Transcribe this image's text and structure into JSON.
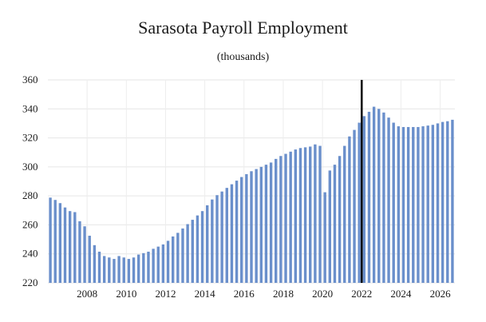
{
  "chart_data": {
    "type": "bar",
    "title": "Sarasota Payroll Employment",
    "subtitle": "(thousands)",
    "xlabel": "",
    "ylabel": "",
    "ylim": [
      220,
      360
    ],
    "yticks": [
      220,
      240,
      260,
      280,
      300,
      320,
      340,
      360
    ],
    "xtick_labels": [
      "2008",
      "2010",
      "2012",
      "2014",
      "2016",
      "2018",
      "2020",
      "2022",
      "2024",
      "2026"
    ],
    "x_start": "2006 Q3",
    "frequency": "quarterly",
    "grid": true,
    "bar_color": "#6a8fcb",
    "marker_line_color": "#000000",
    "vertical_marker": "2022 Q3",
    "values": [
      278.8,
      277.2,
      275.0,
      272.0,
      269.5,
      268.8,
      262.5,
      259.0,
      252.5,
      246.0,
      241.5,
      238.5,
      237.5,
      236.5,
      238.5,
      237.5,
      236.5,
      237.5,
      239.5,
      240.5,
      241.5,
      243.5,
      245.0,
      246.5,
      249.0,
      252.0,
      254.5,
      257.5,
      260.5,
      263.5,
      266.5,
      269.5,
      273.5,
      277.5,
      280.5,
      283.0,
      285.5,
      288.0,
      290.5,
      293.0,
      295.0,
      297.0,
      298.5,
      300.0,
      301.5,
      303.0,
      305.5,
      307.5,
      309.0,
      310.5,
      312.0,
      313.0,
      313.5,
      314.0,
      315.5,
      314.5,
      282.5,
      297.5,
      301.5,
      307.5,
      314.5,
      321.0,
      325.5,
      330.5,
      335.0,
      338.0,
      341.5,
      340.0,
      337.5,
      334.0,
      330.5,
      328.0,
      327.5,
      327.5,
      327.5,
      327.5,
      328.0,
      328.5,
      329.0,
      330.0,
      331.0,
      331.5,
      332.5
    ]
  }
}
